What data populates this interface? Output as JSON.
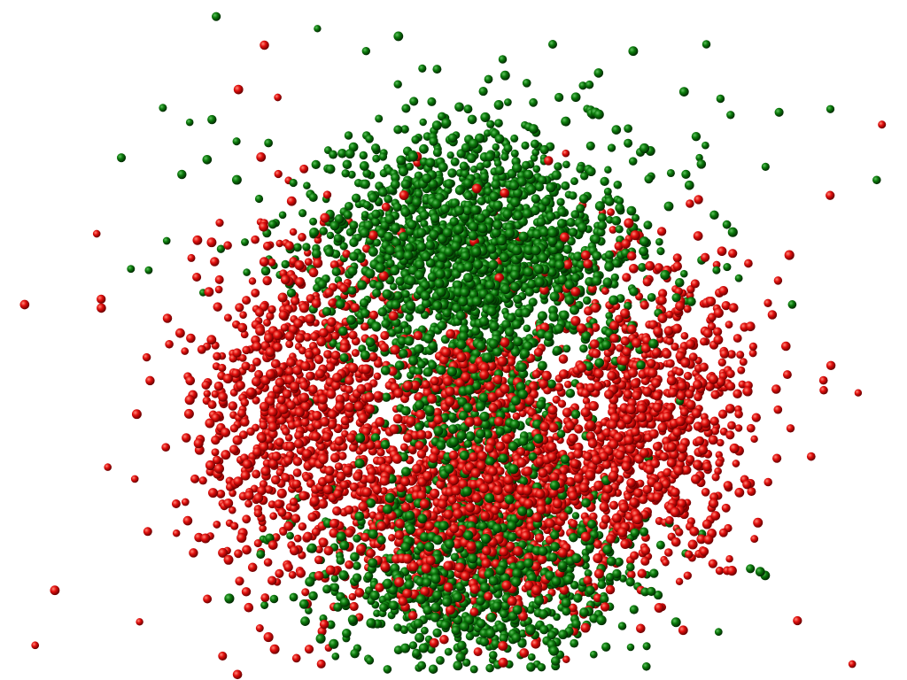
{
  "scene": {
    "background": "#ffffff",
    "particle_types": [
      {
        "name": "green-particles",
        "color": "#0a6b0a",
        "highlight": "#3fae3f",
        "shadow": "#033803"
      },
      {
        "name": "red-particles",
        "color": "#e0100e",
        "highlight": "#ff6a5a",
        "shadow": "#7a0202"
      }
    ]
  }
}
